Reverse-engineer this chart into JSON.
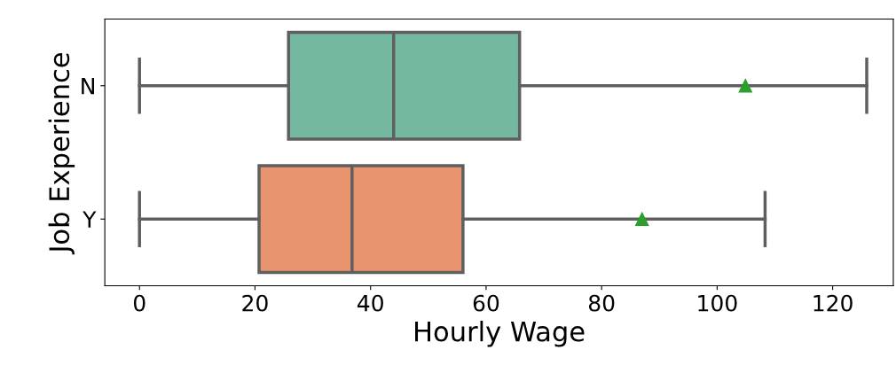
{
  "chart_data": {
    "type": "box",
    "orientation": "horizontal",
    "xlabel": "Hourly Wage",
    "ylabel": "Job Experience",
    "categories": [
      "N",
      "Y"
    ],
    "boxes": [
      {
        "low": 0,
        "q1": 25.8,
        "median": 44,
        "q3": 65.8,
        "high": 125.9,
        "mean": 104.9
      },
      {
        "low": 0,
        "q1": 20.7,
        "median": 36.8,
        "q3": 56,
        "high": 108.3,
        "mean": 87
      }
    ],
    "colors": [
      "#74b8a0",
      "#e8956f"
    ],
    "xlim": [
      -6,
      130.5
    ],
    "xticks": [
      0,
      20,
      40,
      60,
      80,
      100,
      120
    ],
    "grid": false,
    "marker": "triangle"
  }
}
